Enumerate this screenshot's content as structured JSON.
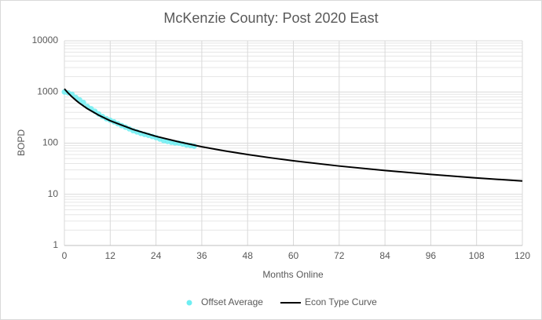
{
  "chart_data": {
    "type": "scatter-line",
    "title": "McKenzie County: Post 2020 East",
    "x_label": "Months Online",
    "y_label": "BOPD",
    "xlim": [
      0,
      120
    ],
    "xticks": [
      0,
      12,
      24,
      36,
      48,
      60,
      72,
      84,
      96,
      108,
      120
    ],
    "ylim": [
      1,
      10000
    ],
    "yticks": [
      1,
      10,
      100,
      1000,
      10000
    ],
    "log_y": true,
    "grid": true,
    "minor_grid": true,
    "legend": "bottom",
    "series": [
      {
        "name": "Offset Average",
        "kind": "scatter",
        "color": "#6eeef2",
        "x": [
          0,
          1,
          2,
          3,
          4,
          5,
          6,
          7,
          8,
          9,
          10,
          11,
          12,
          13,
          14,
          15,
          16,
          17,
          18,
          19,
          20,
          21,
          22,
          23,
          24,
          25,
          26,
          27,
          28,
          29,
          30,
          31,
          32,
          33,
          34
        ],
        "values": [
          1000,
          960,
          900,
          780,
          700,
          620,
          520,
          470,
          420,
          370,
          330,
          300,
          280,
          260,
          240,
          220,
          205,
          190,
          175,
          165,
          155,
          148,
          142,
          135,
          128,
          120,
          112,
          108,
          104,
          101,
          100,
          96,
          92,
          90,
          87
        ]
      },
      {
        "name": "Econ Type Curve",
        "kind": "line",
        "color": "#000000",
        "x": [
          0,
          1,
          2,
          3,
          4,
          6,
          9,
          12,
          18,
          24,
          30,
          36,
          42,
          48,
          54,
          60,
          72,
          84,
          96,
          108,
          120
        ],
        "values": [
          1150,
          949,
          801,
          689,
          600,
          473,
          351,
          274,
          185,
          136,
          106,
          85,
          70.7,
          59.9,
          51.7,
          45.2,
          35.7,
          29.2,
          24.5,
          20.9,
          18.2
        ]
      }
    ]
  }
}
